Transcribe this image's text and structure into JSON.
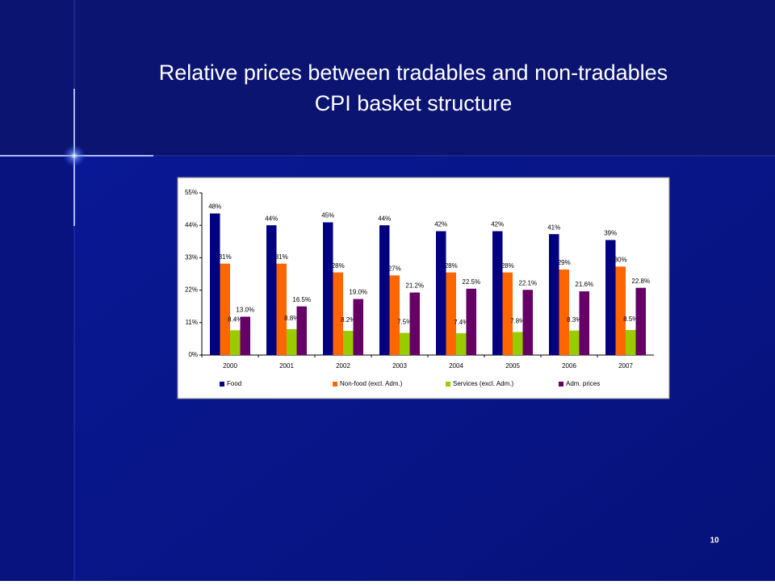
{
  "slide": {
    "page_number": "10"
  },
  "chart_data": {
    "type": "bar",
    "title": "Relative prices between tradables and non-tradables",
    "subtitle": "CPI basket structure",
    "categories": [
      "2000",
      "2001",
      "2002",
      "2003",
      "2004",
      "2005",
      "2006",
      "2007"
    ],
    "series": [
      {
        "name": "Food",
        "color": "#000080",
        "values": [
          48,
          44,
          45,
          44,
          42,
          42,
          41,
          39
        ],
        "value_labels": [
          "48%",
          "44%",
          "45%",
          "44%",
          "42%",
          "42%",
          "41%",
          "39%"
        ]
      },
      {
        "name": "Non-food (excl. Adm.)",
        "color": "#ff6600",
        "values": [
          31,
          31,
          28,
          27,
          28,
          28,
          29,
          30
        ],
        "value_labels": [
          "31%",
          "31%",
          "28%",
          "27%",
          "28%",
          "28%",
          "29%",
          "30%"
        ]
      },
      {
        "name": "Services (excl. Adm.)",
        "color": "#99cc00",
        "values": [
          8.4,
          8.8,
          8.2,
          7.5,
          7.4,
          7.8,
          8.3,
          8.5
        ],
        "value_labels": [
          "8.4%",
          "8.8%",
          "8.2%",
          "7.5%",
          "7.4%",
          "7.8%",
          "8.3%",
          "8.5%"
        ]
      },
      {
        "name": "Adm. prices",
        "color": "#660066",
        "values": [
          13.0,
          16.5,
          19.0,
          21.2,
          22.5,
          22.1,
          21.6,
          22.8
        ],
        "value_labels": [
          "13.0%",
          "16.5%",
          "19.0%",
          "21.2%",
          "22.5%",
          "22.1%",
          "21.6%",
          "22.8%"
        ]
      }
    ],
    "ylim": [
      0,
      55
    ],
    "yticks": [
      {
        "value": 0,
        "label": "0%"
      },
      {
        "value": 11,
        "label": "11%"
      },
      {
        "value": 22,
        "label": "22%"
      },
      {
        "value": 33,
        "label": "33%"
      },
      {
        "value": 44,
        "label": "44%"
      },
      {
        "value": 55,
        "label": "55%"
      }
    ],
    "grid": false,
    "legend": "bottom"
  }
}
